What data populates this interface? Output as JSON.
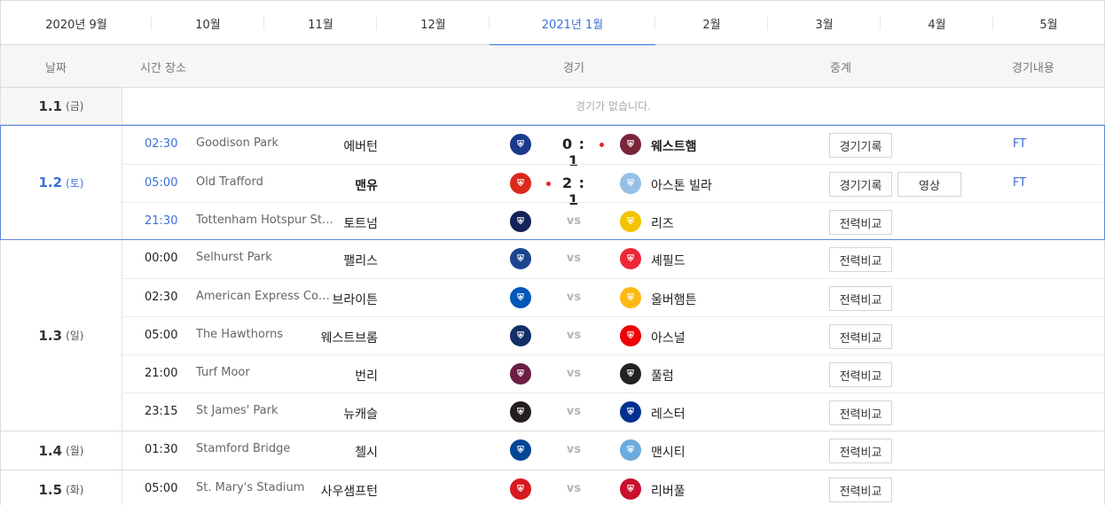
{
  "months": [
    {
      "label": "2020년 9월",
      "width": 170
    },
    {
      "label": "10월",
      "width": 127
    },
    {
      "label": "11월",
      "width": 127
    },
    {
      "label": "12월",
      "width": 127
    },
    {
      "label": "2021년 1월",
      "width": 187,
      "active": true
    },
    {
      "label": "2월",
      "width": 127
    },
    {
      "label": "3월",
      "width": 127
    },
    {
      "label": "4월",
      "width": 127
    },
    {
      "label": "5월",
      "width": 125
    }
  ],
  "header": {
    "date": "날짜",
    "time_venue": "시간 장소",
    "match": "경기",
    "broadcast": "중계",
    "detail": "경기내용"
  },
  "days": [
    {
      "date": "1.1",
      "weekday": "(금)",
      "no_game": "경기가 없습니다.",
      "matches": []
    },
    {
      "date": "1.2",
      "weekday": "(토)",
      "selected": true,
      "matches": [
        {
          "time": "02:30",
          "venue": "Goodison Park",
          "home": "에버턴",
          "home_crest": "crest-everton",
          "home_color": "#1b3a8c",
          "score": "0 : 1",
          "winner": "away",
          "away": "웨스트햄",
          "away_crest": "crest-west-ham",
          "away_color": "#7a263a",
          "buttons": [
            "경기기록"
          ],
          "status": "FT"
        },
        {
          "time": "05:00",
          "venue": "Old Trafford",
          "home": "맨유",
          "home_crest": "crest-man-utd",
          "home_color": "#da291c",
          "score": "2 : 1",
          "winner": "home",
          "away": "아스톤 빌라",
          "away_crest": "crest-aston-villa",
          "away_color": "#95bfe5",
          "buttons": [
            "경기기록",
            "영상"
          ],
          "status": "FT"
        },
        {
          "time": "21:30",
          "venue": "Tottenham Hotspur St…",
          "home": "토트넘",
          "home_crest": "crest-tottenham",
          "home_color": "#132257",
          "score": "vs",
          "winner": "",
          "away": "리즈",
          "away_crest": "crest-leeds",
          "away_color": "#f4c300",
          "buttons": [
            "전력비교"
          ],
          "status": ""
        }
      ]
    },
    {
      "date": "1.3",
      "weekday": "(일)",
      "matches": [
        {
          "time": "00:00",
          "venue": "Selhurst Park",
          "home": "팰리스",
          "home_crest": "crest-crystal-palace",
          "home_color": "#1b458f",
          "score": "vs",
          "winner": "",
          "away": "셰필드",
          "away_crest": "crest-sheffield-united",
          "away_color": "#ee2737",
          "buttons": [
            "전력비교"
          ],
          "status": ""
        },
        {
          "time": "02:30",
          "venue": "American Express Co…",
          "home": "브라이튼",
          "home_crest": "crest-brighton",
          "home_color": "#0057b8",
          "score": "vs",
          "winner": "",
          "away": "울버햄튼",
          "away_crest": "crest-wolves",
          "away_color": "#fdb913",
          "buttons": [
            "전력비교"
          ],
          "status": ""
        },
        {
          "time": "05:00",
          "venue": "The Hawthorns",
          "home": "웨스트브롬",
          "home_crest": "crest-west-brom",
          "home_color": "#122f67",
          "score": "vs",
          "winner": "",
          "away": "아스널",
          "away_crest": "crest-arsenal",
          "away_color": "#ef0107",
          "buttons": [
            "전력비교"
          ],
          "status": ""
        },
        {
          "time": "21:00",
          "venue": "Turf Moor",
          "home": "번리",
          "home_crest": "crest-burnley",
          "home_color": "#6c1d45",
          "score": "vs",
          "winner": "",
          "away": "풀럼",
          "away_crest": "crest-fulham",
          "away_color": "#222222",
          "buttons": [
            "전력비교"
          ],
          "status": ""
        },
        {
          "time": "23:15",
          "venue": "St James' Park",
          "home": "뉴캐슬",
          "home_crest": "crest-newcastle",
          "home_color": "#241f20",
          "score": "vs",
          "winner": "",
          "away": "레스터",
          "away_crest": "crest-leicester",
          "away_color": "#003090",
          "buttons": [
            "전력비교"
          ],
          "status": ""
        }
      ]
    },
    {
      "date": "1.4",
      "weekday": "(월)",
      "matches": [
        {
          "time": "01:30",
          "venue": "Stamford Bridge",
          "home": "첼시",
          "home_crest": "crest-chelsea",
          "home_color": "#034694",
          "score": "vs",
          "winner": "",
          "away": "맨시티",
          "away_crest": "crest-man-city",
          "away_color": "#6cabdd",
          "buttons": [
            "전력비교"
          ],
          "status": ""
        }
      ]
    },
    {
      "date": "1.5",
      "weekday": "(화)",
      "matches": [
        {
          "time": "05:00",
          "venue": "St. Mary's Stadium",
          "home": "사우샘프턴",
          "home_crest": "crest-southampton",
          "home_color": "#d71920",
          "score": "vs",
          "winner": "",
          "away": "리버풀",
          "away_crest": "crest-liverpool",
          "away_color": "#c8102e",
          "buttons": [
            "전력비교"
          ],
          "status": ""
        }
      ]
    }
  ]
}
